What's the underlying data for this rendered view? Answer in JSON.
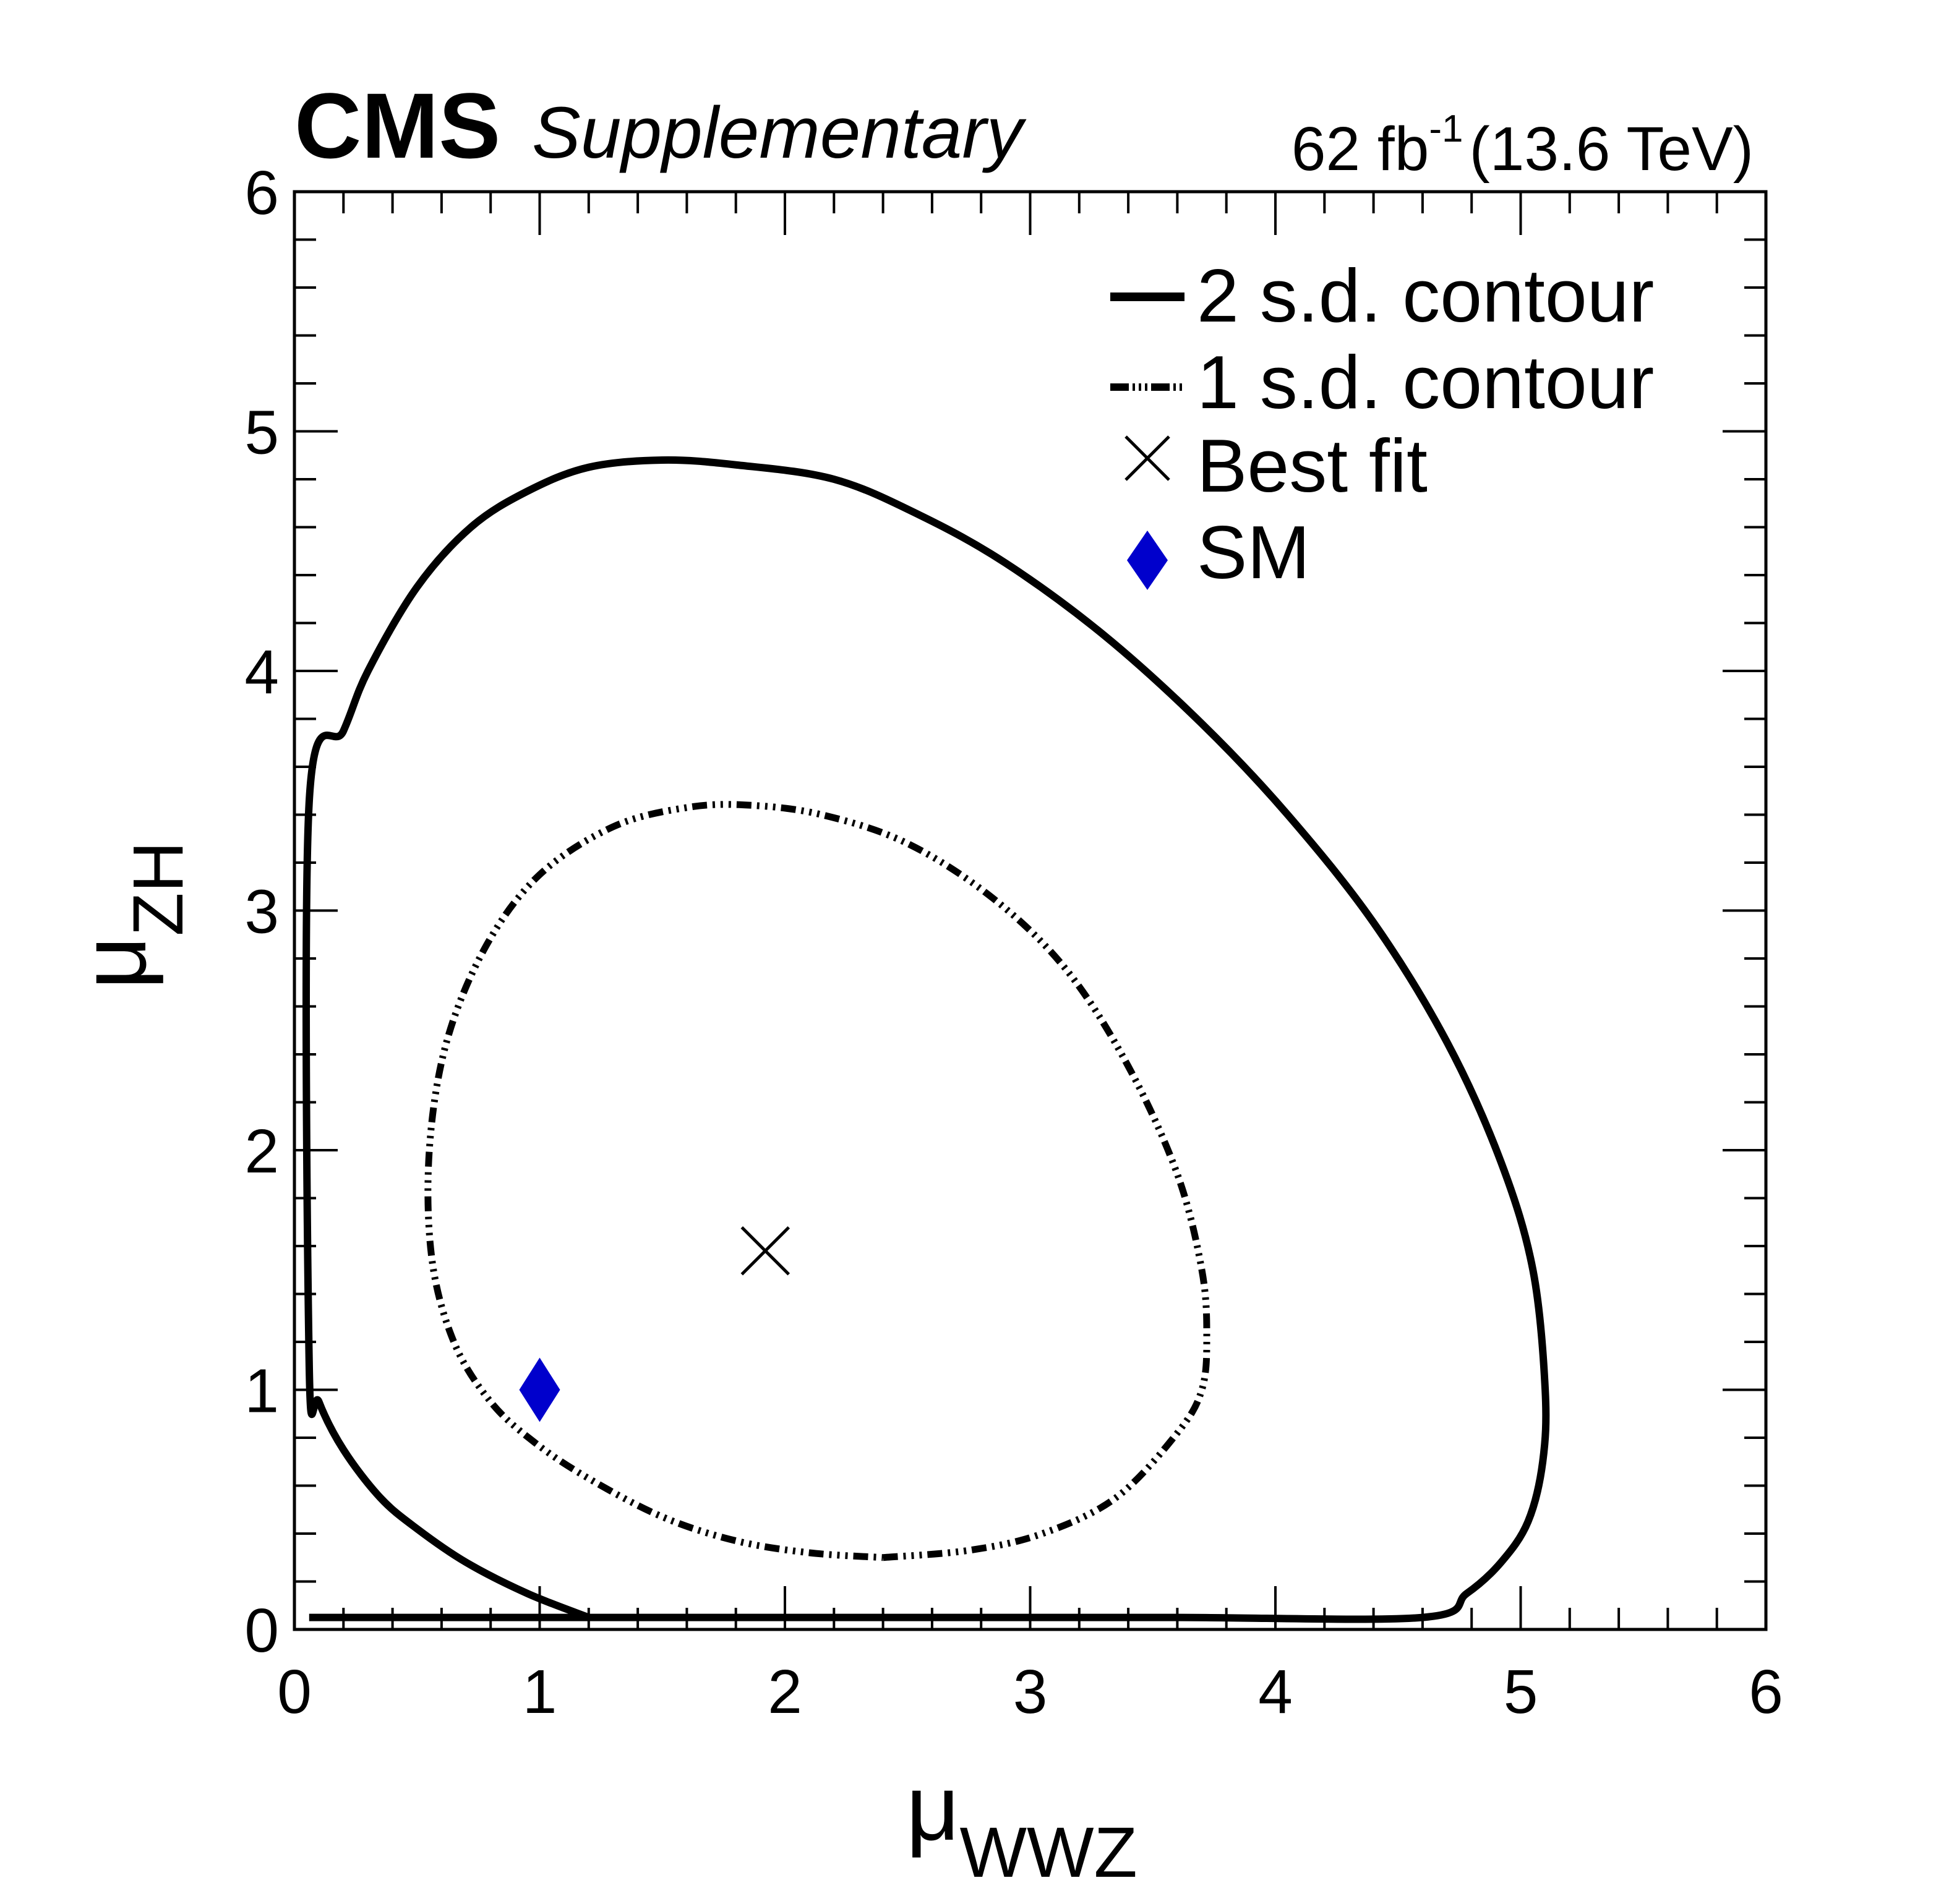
{
  "header": {
    "experiment": "CMS",
    "tag": "Supplementary",
    "lumi_value": "62 fb",
    "lumi_exp": "-1",
    "energy": "(13.6 TeV)"
  },
  "chart_data": {
    "type": "contour",
    "title": "",
    "xlabel": {
      "symbol": "μ",
      "sub": "WWZ"
    },
    "ylabel": {
      "symbol": "μ",
      "sub": "ZH"
    },
    "xlim": [
      0,
      6
    ],
    "ylim": [
      0,
      6
    ],
    "x_major_ticks": [
      0,
      1,
      2,
      3,
      4,
      5,
      6
    ],
    "y_major_ticks": [
      0,
      1,
      2,
      3,
      4,
      5,
      6
    ],
    "x_tick_labels": [
      "0",
      "1",
      "2",
      "3",
      "4",
      "5",
      "6"
    ],
    "y_tick_labels": [
      "0",
      "1",
      "2",
      "3",
      "4",
      "5",
      "6"
    ],
    "minor_per_major": 5,
    "legend": {
      "position": "top-right",
      "entries": [
        {
          "label": "2 s.d. contour",
          "style": "solid"
        },
        {
          "label": "1 s.d. contour",
          "style": "dash-dot"
        },
        {
          "label": "Best fit",
          "style": "cross"
        },
        {
          "label": "SM",
          "style": "diamond"
        }
      ]
    },
    "series": [
      {
        "name": "2 s.d. contour",
        "style": "solid",
        "color": "#000000",
        "points": [
          [
            0.06,
            0.05
          ],
          [
            1.2,
            0.05
          ],
          [
            1.6,
            0.05
          ],
          [
            2.6,
            0.05
          ],
          [
            3.6,
            0.05
          ],
          [
            4.6,
            0.05
          ],
          [
            4.78,
            0.15
          ],
          [
            4.92,
            0.28
          ],
          [
            5.03,
            0.45
          ],
          [
            5.09,
            0.7
          ],
          [
            5.1,
            1.0
          ],
          [
            5.05,
            1.5
          ],
          [
            4.92,
            1.95
          ],
          [
            4.7,
            2.45
          ],
          [
            4.4,
            2.95
          ],
          [
            4.05,
            3.4
          ],
          [
            3.7,
            3.78
          ],
          [
            3.3,
            4.15
          ],
          [
            2.9,
            4.45
          ],
          [
            2.55,
            4.65
          ],
          [
            2.2,
            4.8
          ],
          [
            1.8,
            4.86
          ],
          [
            1.5,
            4.88
          ],
          [
            1.2,
            4.85
          ],
          [
            0.95,
            4.75
          ],
          [
            0.72,
            4.6
          ],
          [
            0.5,
            4.35
          ],
          [
            0.3,
            4.0
          ],
          [
            0.2,
            3.75
          ],
          [
            0.06,
            3.45
          ],
          [
            0.06,
            1.12
          ],
          [
            0.1,
            0.95
          ],
          [
            0.2,
            0.75
          ],
          [
            0.35,
            0.55
          ],
          [
            0.5,
            0.42
          ],
          [
            0.7,
            0.28
          ],
          [
            0.95,
            0.15
          ],
          [
            1.2,
            0.05
          ]
        ]
      },
      {
        "name": "1 s.d. contour",
        "style": "dash-dot",
        "color": "#000000",
        "points": [
          [
            2.4,
            0.3
          ],
          [
            2.75,
            0.33
          ],
          [
            3.05,
            0.4
          ],
          [
            3.35,
            0.55
          ],
          [
            3.6,
            0.82
          ],
          [
            3.7,
            1.0
          ],
          [
            3.72,
            1.22
          ],
          [
            3.7,
            1.5
          ],
          [
            3.6,
            1.9
          ],
          [
            3.4,
            2.35
          ],
          [
            3.15,
            2.75
          ],
          [
            2.85,
            3.05
          ],
          [
            2.5,
            3.28
          ],
          [
            2.15,
            3.4
          ],
          [
            1.85,
            3.44
          ],
          [
            1.6,
            3.43
          ],
          [
            1.3,
            3.35
          ],
          [
            1.0,
            3.15
          ],
          [
            0.78,
            2.85
          ],
          [
            0.62,
            2.45
          ],
          [
            0.55,
            2.0
          ],
          [
            0.56,
            1.55
          ],
          [
            0.65,
            1.2
          ],
          [
            0.8,
            0.95
          ],
          [
            0.98,
            0.78
          ],
          [
            1.2,
            0.63
          ],
          [
            1.5,
            0.47
          ],
          [
            1.8,
            0.37
          ],
          [
            2.1,
            0.32
          ],
          [
            2.4,
            0.3
          ]
        ]
      }
    ],
    "best_fit": {
      "name": "Best fit",
      "x": 1.92,
      "y": 1.58
    },
    "sm": {
      "name": "SM",
      "x": 1.0,
      "y": 1.0,
      "color": "#0000cc"
    }
  }
}
